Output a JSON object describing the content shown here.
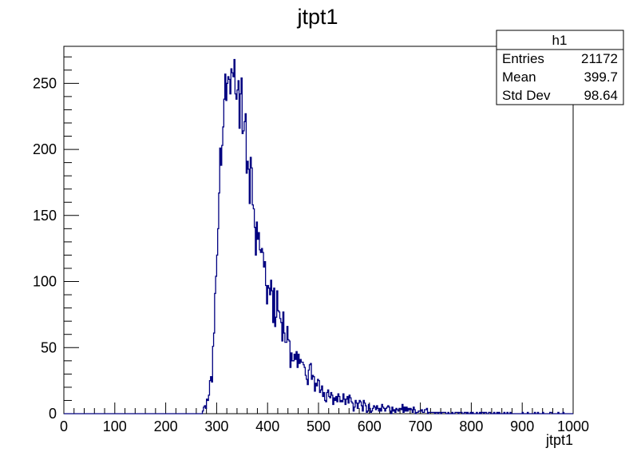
{
  "chart_data": {
    "type": "histogram",
    "title": "jtpt1",
    "xlabel": "jtpt1",
    "ylabel": "",
    "xlim": [
      0,
      1000
    ],
    "ylim": [
      0,
      278
    ],
    "grid": false,
    "legend": "none",
    "line_color": "#000080",
    "x_ticks": [
      0,
      100,
      200,
      300,
      400,
      500,
      600,
      700,
      800,
      900,
      1000
    ],
    "y_ticks": [
      0,
      50,
      100,
      150,
      200,
      250
    ],
    "bin_width": 2,
    "bin_start": 0,
    "control_points": [
      [
        0,
        0
      ],
      [
        270,
        0
      ],
      [
        276,
        3
      ],
      [
        284,
        12
      ],
      [
        288,
        22
      ],
      [
        292,
        38
      ],
      [
        296,
        70
      ],
      [
        300,
        110
      ],
      [
        304,
        160
      ],
      [
        308,
        205
      ],
      [
        312,
        230
      ],
      [
        316,
        240
      ],
      [
        320,
        245
      ],
      [
        324,
        248
      ],
      [
        328,
        250
      ],
      [
        332,
        250
      ],
      [
        336,
        248
      ],
      [
        340,
        244
      ],
      [
        344,
        238
      ],
      [
        350,
        225
      ],
      [
        356,
        208
      ],
      [
        362,
        190
      ],
      [
        368,
        172
      ],
      [
        376,
        150
      ],
      [
        384,
        130
      ],
      [
        392,
        112
      ],
      [
        400,
        98
      ],
      [
        410,
        84
      ],
      [
        420,
        72
      ],
      [
        430,
        62
      ],
      [
        440,
        53
      ],
      [
        450,
        46
      ],
      [
        460,
        40
      ],
      [
        470,
        34
      ],
      [
        480,
        29
      ],
      [
        490,
        25
      ],
      [
        500,
        21
      ],
      [
        510,
        18
      ],
      [
        520,
        16
      ],
      [
        530,
        14
      ],
      [
        540,
        12
      ],
      [
        550,
        10
      ],
      [
        560,
        9
      ],
      [
        570,
        8
      ],
      [
        580,
        7
      ],
      [
        590,
        6
      ],
      [
        600,
        5
      ],
      [
        620,
        4
      ],
      [
        640,
        3.2
      ],
      [
        660,
        2.6
      ],
      [
        680,
        2.1
      ],
      [
        700,
        1.7
      ],
      [
        750,
        1.1
      ],
      [
        800,
        0.8
      ],
      [
        850,
        0.5
      ],
      [
        900,
        0.35
      ],
      [
        950,
        0.25
      ],
      [
        1000,
        0.2
      ]
    ],
    "stats": {
      "name": "h1",
      "rows": [
        {
          "label": "Entries",
          "value": "21172"
        },
        {
          "label": "Mean",
          "value": "399.7"
        },
        {
          "label": "Std Dev",
          "value": "98.64"
        }
      ]
    }
  }
}
